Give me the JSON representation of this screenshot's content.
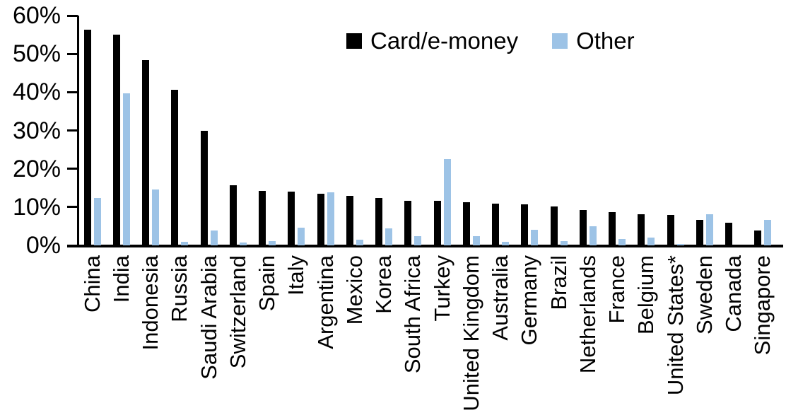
{
  "chart_data": {
    "type": "bar",
    "title": "",
    "xlabel": "",
    "ylabel": "",
    "ylim": [
      0,
      60
    ],
    "ytick_step": 10,
    "ytick_labels": [
      "0%",
      "10%",
      "20%",
      "30%",
      "40%",
      "50%",
      "60%"
    ],
    "grid": false,
    "legend_position": "top-center",
    "categories": [
      "China",
      "India",
      "Indonesia",
      "Russia",
      "Saudi Arabia",
      "Switzerland",
      "Spain",
      "Italy",
      "Argentina",
      "Mexico",
      "Korea",
      "South Africa",
      "Turkey",
      "United Kingdom",
      "Australia",
      "Germany",
      "Brazil",
      "Netherlands",
      "France",
      "Belgium",
      "United States*",
      "Sweden",
      "Canada",
      "Singapore"
    ],
    "series": [
      {
        "name": "Card/e-money",
        "color": "#000000",
        "values": [
          56.4,
          55.0,
          48.4,
          40.6,
          29.9,
          15.7,
          14.3,
          14.1,
          13.4,
          13.0,
          12.3,
          11.7,
          11.6,
          11.2,
          10.9,
          10.7,
          10.1,
          9.2,
          8.7,
          8.2,
          7.9,
          6.6,
          6.0,
          3.9
        ]
      },
      {
        "name": "Other",
        "color": "#9DC3E6",
        "values": [
          12.3,
          39.7,
          14.5,
          1.0,
          3.9,
          0.8,
          1.1,
          4.6,
          13.9,
          1.4,
          4.5,
          2.4,
          22.6,
          2.4,
          1.0,
          4.0,
          1.2,
          4.9,
          1.6,
          2.1,
          0.3,
          8.1,
          0.0,
          6.7
        ]
      }
    ]
  }
}
